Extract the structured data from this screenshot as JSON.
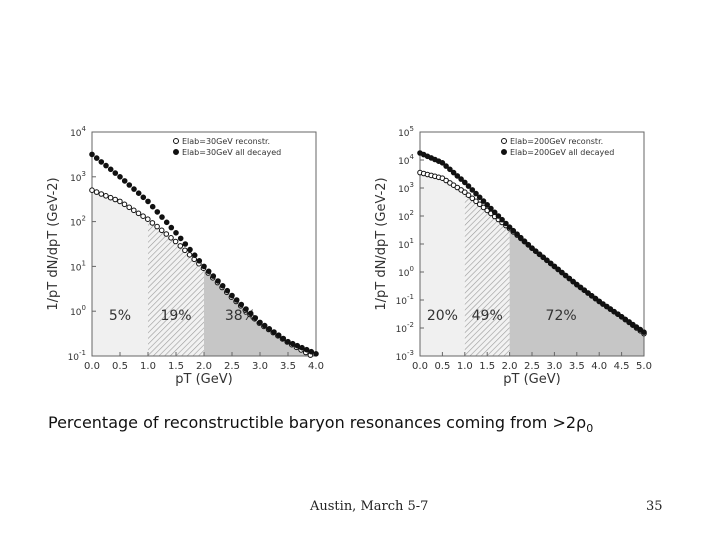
{
  "chart_data": [
    {
      "type": "scatter",
      "ylabel": "1/pT dN/dpT (GeV-2)",
      "xlabel": "pT (GeV)",
      "xlim": [
        0,
        4
      ],
      "ylim_log10": [
        -1,
        4
      ],
      "x_ticks": [
        "0.0",
        "0.5",
        "1.0",
        "1.5",
        "2.0",
        "2.5",
        "3.0",
        "3.5",
        "4.0"
      ],
      "y_ticks": [
        "10-1",
        "100",
        "101",
        "102",
        "103",
        "104"
      ],
      "y_tick_exponents": [
        -1,
        0,
        1,
        2,
        3,
        4
      ],
      "legend": [
        "Elab=30GeV reconstr.",
        "Elab=30GeV all decayed"
      ],
      "legend_position": "top-right",
      "regions": [
        {
          "from": 0.0,
          "to": 1.0,
          "label": "5%",
          "style": "light"
        },
        {
          "from": 1.0,
          "to": 2.0,
          "label": "19%",
          "style": "hatched"
        },
        {
          "from": 2.0,
          "to": 4.0,
          "label": "38%",
          "style": "dark"
        }
      ],
      "series": [
        {
          "name": "Elab=30GeV reconstr.",
          "marker": "open",
          "points": [
            [
              0.0,
              2.7
            ],
            [
              0.5,
              2.45
            ],
            [
              1.0,
              2.05
            ],
            [
              1.5,
              1.55
            ],
            [
              2.0,
              0.95
            ],
            [
              2.5,
              0.3
            ],
            [
              3.0,
              -0.28
            ],
            [
              3.5,
              -0.7
            ],
            [
              3.9,
              -0.98
            ]
          ]
        },
        {
          "name": "Elab=30GeV all decayed",
          "marker": "filled",
          "points": [
            [
              0.0,
              3.5
            ],
            [
              0.5,
              3.0
            ],
            [
              1.0,
              2.45
            ],
            [
              1.5,
              1.75
            ],
            [
              2.0,
              1.0
            ],
            [
              2.5,
              0.35
            ],
            [
              3.0,
              -0.25
            ],
            [
              3.5,
              -0.68
            ],
            [
              4.0,
              -0.95
            ]
          ]
        }
      ]
    },
    {
      "type": "scatter",
      "ylabel": "1/pT dN/dpT (GeV-2)",
      "xlabel": "pT (GeV)",
      "xlim": [
        0,
        5
      ],
      "ylim_log10": [
        -3,
        5
      ],
      "x_ticks": [
        "0.0",
        "0.5",
        "1.0",
        "1.5",
        "2.0",
        "2.5",
        "3.0",
        "3.5",
        "4.0",
        "4.5",
        "5.0"
      ],
      "y_ticks": [
        "10-3",
        "10-2",
        "10-1",
        "100",
        "101",
        "102",
        "103",
        "104",
        "105"
      ],
      "y_tick_exponents": [
        -3,
        -2,
        -1,
        0,
        1,
        2,
        3,
        4,
        5
      ],
      "legend": [
        "Elab=200GeV reconstr.",
        "Elab=200GeV all decayed"
      ],
      "legend_position": "top-right",
      "regions": [
        {
          "from": 0.0,
          "to": 1.0,
          "label": "20%",
          "style": "light"
        },
        {
          "from": 1.0,
          "to": 2.0,
          "label": "49%",
          "style": "hatched"
        },
        {
          "from": 2.0,
          "to": 5.0,
          "label": "72%",
          "style": "dark"
        }
      ],
      "series": [
        {
          "name": "Elab=200GeV reconstr.",
          "marker": "open",
          "points": [
            [
              0.0,
              3.55
            ],
            [
              0.5,
              3.35
            ],
            [
              1.0,
              2.85
            ],
            [
              1.5,
              2.2
            ],
            [
              2.0,
              1.55
            ],
            [
              2.5,
              0.85
            ],
            [
              3.0,
              0.2
            ],
            [
              3.5,
              -0.45
            ],
            [
              4.0,
              -1.05
            ],
            [
              4.5,
              -1.6
            ],
            [
              5.0,
              -2.2
            ]
          ]
        },
        {
          "name": "Elab=200GeV all decayed",
          "marker": "filled",
          "points": [
            [
              0.0,
              4.25
            ],
            [
              0.5,
              3.9
            ],
            [
              1.0,
              3.2
            ],
            [
              1.5,
              2.4
            ],
            [
              2.0,
              1.6
            ],
            [
              2.5,
              0.85
            ],
            [
              3.0,
              0.2
            ],
            [
              3.5,
              -0.45
            ],
            [
              4.0,
              -1.05
            ],
            [
              4.5,
              -1.6
            ],
            [
              5.0,
              -2.15
            ]
          ]
        }
      ]
    }
  ],
  "caption": {
    "text": "Percentage of reconstructible baryon resonances coming from >2ρ",
    "subscript": "0"
  },
  "footer": {
    "center": "Austin, March 5-7",
    "page": "35"
  }
}
